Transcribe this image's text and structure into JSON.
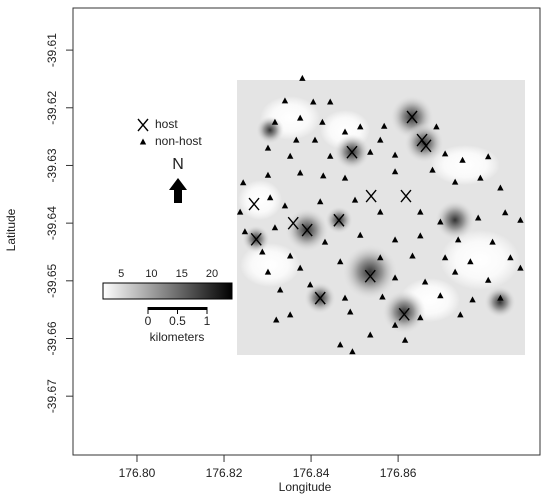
{
  "chart_data": {
    "type": "scatter",
    "x_label": "Longitude",
    "y_label": "Latitude",
    "xlim": [
      176.7853,
      176.8926
    ],
    "ylim": [
      -39.6802,
      -39.6027
    ],
    "xticks": [
      {
        "value": 176.8,
        "label": "176.80"
      },
      176.82,
      176.84,
      176.86
    ],
    "yticks": [
      -39.61,
      -39.62,
      -39.63,
      -39.64,
      -39.65,
      -39.66,
      -39.67
    ],
    "series": [
      {
        "name": "host",
        "color": "#000000",
        "marker": "x",
        "x": [
          176.8632,
          176.8655,
          176.8664,
          176.8494,
          176.8538,
          176.8618,
          176.8269,
          176.8464,
          176.8359,
          176.8391,
          176.8274,
          176.8536,
          176.8421,
          176.8614
        ],
        "values": [
          -39.6216,
          -39.6256,
          -39.6266,
          -39.6277,
          -39.6353,
          -39.6353,
          -39.6367,
          -39.6395,
          -39.64,
          -39.6412,
          -39.6428,
          -39.6492,
          -39.653,
          -39.6558
        ]
      },
      {
        "name": "non-host",
        "color": "#000000",
        "marker": "triangle",
        "x": [
          176.838,
          176.834,
          176.8405,
          176.8444,
          176.8375,
          176.8317,
          176.8426,
          176.8513,
          176.8568,
          176.8366,
          176.8409,
          176.8478,
          176.8559,
          176.8688,
          176.8301,
          176.8352,
          176.8444,
          176.8536,
          176.8593,
          176.8708,
          176.8748,
          176.8807,
          176.8244,
          176.8301,
          176.8375,
          176.8428,
          176.8478,
          176.8593,
          176.8679,
          176.8731,
          176.8789,
          176.8835,
          176.8237,
          176.8306,
          176.834,
          176.8421,
          176.8501,
          176.8559,
          176.8651,
          176.8697,
          176.8784,
          176.8846,
          176.8881,
          176.8248,
          176.8317,
          176.8432,
          176.8513,
          176.8593,
          176.8651,
          176.8738,
          176.8817,
          176.8288,
          176.8352,
          176.8467,
          176.8559,
          176.8633,
          176.8708,
          176.8766,
          176.8858,
          176.8301,
          176.8375,
          176.8593,
          176.8662,
          176.8731,
          176.8807,
          176.8881,
          176.8329,
          176.8398,
          176.8478,
          176.8564,
          176.8697,
          176.8771,
          176.8835,
          176.8352,
          176.849,
          176.8593,
          176.8651,
          176.8743,
          176.8536,
          176.8616,
          176.8467,
          176.8495,
          176.832
        ],
        "values": [
          -39.6149,
          -39.6188,
          -39.619,
          -39.619,
          -39.6218,
          -39.6225,
          -39.6225,
          -39.6233,
          -39.6232,
          -39.6256,
          -39.6256,
          -39.6242,
          -39.6256,
          -39.6233,
          -39.627,
          -39.6284,
          -39.6284,
          -39.6277,
          -39.6282,
          -39.628,
          -39.6291,
          -39.6285,
          -39.633,
          -39.6317,
          -39.6313,
          -39.6318,
          -39.6322,
          -39.6311,
          -39.6308,
          -39.6329,
          -39.6322,
          -39.6339,
          -39.6381,
          -39.6356,
          -39.637,
          -39.6363,
          -39.636,
          -39.6381,
          -39.6381,
          -39.6398,
          -39.6391,
          -39.6382,
          -39.6395,
          -39.6415,
          -39.6408,
          -39.6433,
          -39.6421,
          -39.6429,
          -39.6422,
          -39.6429,
          -39.6433,
          -39.645,
          -39.6457,
          -39.6467,
          -39.646,
          -39.6457,
          -39.646,
          -39.6467,
          -39.646,
          -39.6485,
          -39.6478,
          -39.6495,
          -39.6502,
          -39.6485,
          -39.6499,
          -39.6478,
          -39.6516,
          -39.6507,
          -39.653,
          -39.6528,
          -39.6526,
          -39.6533,
          -39.653,
          -39.6559,
          -39.6554,
          -39.6577,
          -39.6564,
          -39.6559,
          -39.6594,
          -39.6603,
          -39.6611,
          -39.6623,
          -39.6568
        ]
      }
    ],
    "colorbar": {
      "lim": [
        2,
        23.3
      ],
      "ticks": [
        5,
        10,
        15,
        20
      ]
    },
    "scalebar": {
      "lim": [
        0,
        1
      ],
      "ticks": [
        0,
        0.5,
        1
      ],
      "label": "kilometers"
    },
    "north_label": "N"
  }
}
